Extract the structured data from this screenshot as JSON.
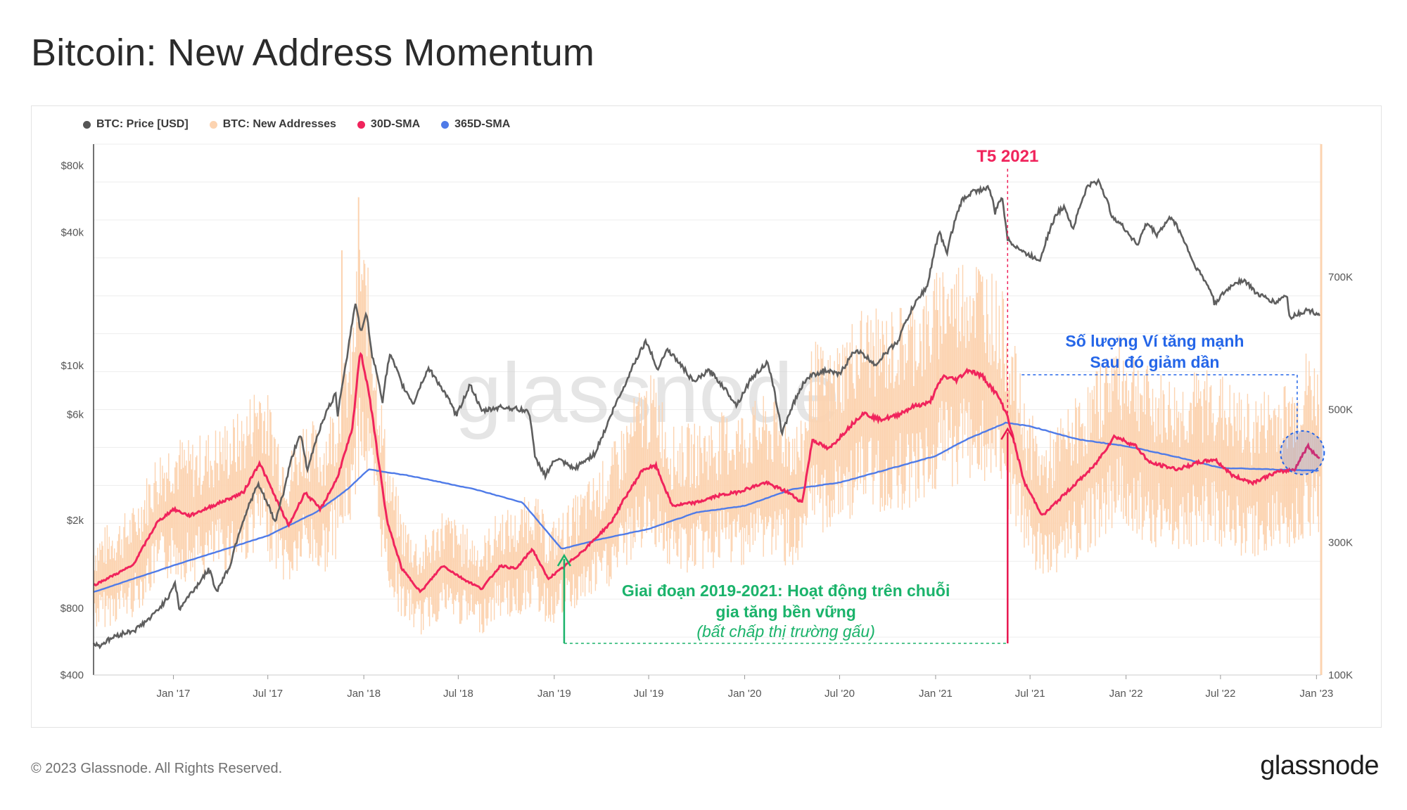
{
  "title": "Bitcoin: New Address Momentum",
  "footer": {
    "copyright": "© 2023 Glassnode. All Rights Reserved.",
    "logo": "glassnode"
  },
  "watermark": "glassnode",
  "legend": [
    {
      "label": "BTC: Price [USD]",
      "color": "#555555"
    },
    {
      "label": "BTC: New Addresses",
      "color": "#fcd3b0"
    },
    {
      "label": "30D-SMA",
      "color": "#f0245c"
    },
    {
      "label": "365D-SMA",
      "color": "#4f7be8"
    }
  ],
  "annotations": {
    "may2021": "T5 2021",
    "blue_line1": "Số lượng Ví tăng mạnh",
    "blue_line2": "Sau đó giảm dần",
    "green_line1": "Giai đoạn 2019-2021: Hoạt động trên chuỗi",
    "green_line2": "gia tăng bền vững",
    "green_line3": "(bất chấp thị trường gấu)"
  },
  "chart_data": {
    "type": "line",
    "x_tick_labels": [
      "Jan '17",
      "Jul '17",
      "Jan '18",
      "Jul '18",
      "Jan '19",
      "Jul '19",
      "Jan '20",
      "Jul '20",
      "Jan '21",
      "Jul '21",
      "Jan '22",
      "Jul '22",
      "Jan '23"
    ],
    "y_left_scale": "log",
    "y_left_tick_labels": [
      "$400",
      "$800",
      "$2k",
      "$6k",
      "$10k",
      "$40k",
      "$80k"
    ],
    "y_left_ticks": [
      400,
      800,
      2000,
      6000,
      10000,
      40000,
      80000
    ],
    "y_left_range": [
      400,
      100000
    ],
    "y_right_tick_labels": [
      "100K",
      "300K",
      "500K",
      "700K"
    ],
    "y_right_ticks": [
      100000,
      300000,
      500000,
      700000
    ],
    "y_right_range": [
      100000,
      900000
    ],
    "x_range": [
      "2016-08-01",
      "2023-01-10"
    ],
    "series": [
      {
        "name": "BTC: Price [USD]",
        "axis": "left",
        "points": [
          [
            "2016-08-01",
            560
          ],
          [
            "2016-08-10",
            540
          ],
          [
            "2016-09-15",
            605
          ],
          [
            "2016-10-20",
            640
          ],
          [
            "2016-11-20",
            730
          ],
          [
            "2016-12-20",
            880
          ],
          [
            "2017-01-04",
            1050
          ],
          [
            "2017-01-12",
            790
          ],
          [
            "2017-02-15",
            1010
          ],
          [
            "2017-03-10",
            1200
          ],
          [
            "2017-03-25",
            950
          ],
          [
            "2017-04-20",
            1250
          ],
          [
            "2017-05-25",
            2300
          ],
          [
            "2017-06-12",
            2900
          ],
          [
            "2017-07-15",
            1950
          ],
          [
            "2017-08-01",
            2700
          ],
          [
            "2017-08-20",
            4100
          ],
          [
            "2017-09-01",
            4900
          ],
          [
            "2017-09-15",
            3300
          ],
          [
            "2017-10-15",
            5700
          ],
          [
            "2017-11-08",
            7400
          ],
          [
            "2017-11-12",
            6000
          ],
          [
            "2017-11-29",
            10500
          ],
          [
            "2017-12-17",
            19200
          ],
          [
            "2017-12-25",
            14000
          ],
          [
            "2018-01-06",
            17000
          ],
          [
            "2018-01-17",
            11000
          ],
          [
            "2018-02-06",
            6900
          ],
          [
            "2018-02-20",
            11200
          ],
          [
            "2018-03-15",
            8200
          ],
          [
            "2018-04-06",
            6700
          ],
          [
            "2018-05-05",
            9700
          ],
          [
            "2018-06-28",
            5900
          ],
          [
            "2018-07-24",
            8200
          ],
          [
            "2018-08-14",
            6200
          ],
          [
            "2018-09-20",
            6500
          ],
          [
            "2018-10-15",
            6400
          ],
          [
            "2018-11-14",
            6200
          ],
          [
            "2018-11-25",
            3800
          ],
          [
            "2018-12-15",
            3200
          ],
          [
            "2019-01-05",
            3800
          ],
          [
            "2019-02-08",
            3400
          ],
          [
            "2019-03-20",
            4000
          ],
          [
            "2019-04-10",
            5200
          ],
          [
            "2019-05-14",
            7900
          ],
          [
            "2019-06-26",
            12900
          ],
          [
            "2019-07-17",
            9600
          ],
          [
            "2019-08-06",
            11800
          ],
          [
            "2019-09-25",
            8400
          ],
          [
            "2019-10-25",
            9500
          ],
          [
            "2019-12-17",
            6600
          ],
          [
            "2020-01-15",
            8800
          ],
          [
            "2020-02-13",
            10300
          ],
          [
            "2020-03-12",
            4900
          ],
          [
            "2020-04-29",
            8800
          ],
          [
            "2020-06-01",
            9500
          ],
          [
            "2020-07-01",
            9100
          ],
          [
            "2020-08-01",
            11800
          ],
          [
            "2020-09-08",
            10100
          ],
          [
            "2020-10-21",
            12900
          ],
          [
            "2020-11-20",
            18600
          ],
          [
            "2020-12-17",
            23000
          ],
          [
            "2021-01-08",
            40000
          ],
          [
            "2021-01-22",
            32000
          ],
          [
            "2021-02-21",
            56000
          ],
          [
            "2021-03-13",
            61000
          ],
          [
            "2021-04-14",
            63500
          ],
          [
            "2021-04-25",
            49000
          ],
          [
            "2021-05-08",
            58000
          ],
          [
            "2021-05-19",
            37000
          ],
          [
            "2021-06-22",
            32000
          ],
          [
            "2021-07-20",
            30000
          ],
          [
            "2021-08-22",
            49000
          ],
          [
            "2021-09-06",
            52000
          ],
          [
            "2021-09-21",
            41000
          ],
          [
            "2021-10-20",
            65000
          ],
          [
            "2021-11-10",
            68000
          ],
          [
            "2021-12-04",
            48000
          ],
          [
            "2022-01-23",
            35000
          ],
          [
            "2022-02-10",
            44000
          ],
          [
            "2022-03-01",
            39000
          ],
          [
            "2022-03-29",
            47000
          ],
          [
            "2022-05-10",
            29000
          ],
          [
            "2022-06-15",
            21000
          ],
          [
            "2022-06-19",
            19000
          ],
          [
            "2022-07-30",
            23800
          ],
          [
            "2022-08-15",
            24300
          ],
          [
            "2022-09-10",
            21000
          ],
          [
            "2022-10-15",
            19200
          ],
          [
            "2022-11-05",
            21000
          ],
          [
            "2022-11-10",
            16500
          ],
          [
            "2022-12-15",
            17800
          ],
          [
            "2023-01-08",
            17000
          ]
        ]
      },
      {
        "name": "30D-SMA",
        "axis": "right",
        "points": [
          [
            "2016-08-01",
            235000
          ],
          [
            "2016-10-15",
            265000
          ],
          [
            "2016-12-01",
            330000
          ],
          [
            "2017-01-01",
            350000
          ],
          [
            "2017-02-01",
            340000
          ],
          [
            "2017-04-01",
            360000
          ],
          [
            "2017-05-15",
            375000
          ],
          [
            "2017-06-15",
            420000
          ],
          [
            "2017-07-20",
            360000
          ],
          [
            "2017-08-10",
            325000
          ],
          [
            "2017-09-10",
            375000
          ],
          [
            "2017-10-10",
            350000
          ],
          [
            "2017-11-10",
            395000
          ],
          [
            "2017-12-10",
            470000
          ],
          [
            "2017-12-25",
            590000
          ],
          [
            "2018-01-10",
            530000
          ],
          [
            "2018-02-15",
            330000
          ],
          [
            "2018-03-15",
            260000
          ],
          [
            "2018-04-20",
            225000
          ],
          [
            "2018-06-01",
            265000
          ],
          [
            "2018-07-10",
            245000
          ],
          [
            "2018-08-15",
            230000
          ],
          [
            "2018-09-20",
            265000
          ],
          [
            "2018-10-20",
            260000
          ],
          [
            "2018-11-20",
            290000
          ],
          [
            "2018-12-20",
            245000
          ],
          [
            "2019-01-15",
            260000
          ],
          [
            "2019-03-01",
            290000
          ],
          [
            "2019-04-20",
            330000
          ],
          [
            "2019-05-15",
            365000
          ],
          [
            "2019-06-20",
            410000
          ],
          [
            "2019-07-15",
            415000
          ],
          [
            "2019-08-15",
            355000
          ],
          [
            "2019-10-01",
            360000
          ],
          [
            "2019-11-10",
            370000
          ],
          [
            "2019-12-15",
            375000
          ],
          [
            "2020-02-10",
            390000
          ],
          [
            "2020-03-25",
            375000
          ],
          [
            "2020-04-20",
            360000
          ],
          [
            "2020-05-10",
            455000
          ],
          [
            "2020-06-10",
            440000
          ],
          [
            "2020-07-15",
            470000
          ],
          [
            "2020-08-15",
            495000
          ],
          [
            "2020-09-15",
            485000
          ],
          [
            "2020-10-15",
            490000
          ],
          [
            "2020-11-20",
            505000
          ],
          [
            "2020-12-20",
            510000
          ],
          [
            "2021-01-15",
            550000
          ],
          [
            "2021-02-10",
            545000
          ],
          [
            "2021-03-05",
            560000
          ],
          [
            "2021-04-01",
            550000
          ],
          [
            "2021-05-01",
            520000
          ],
          [
            "2021-05-19",
            490000
          ],
          [
            "2021-06-20",
            390000
          ],
          [
            "2021-07-25",
            340000
          ],
          [
            "2021-09-15",
            380000
          ],
          [
            "2021-11-01",
            415000
          ],
          [
            "2021-12-10",
            460000
          ],
          [
            "2022-01-20",
            445000
          ],
          [
            "2022-02-15",
            420000
          ],
          [
            "2022-04-10",
            410000
          ],
          [
            "2022-05-20",
            420000
          ],
          [
            "2022-06-20",
            425000
          ],
          [
            "2022-07-25",
            400000
          ],
          [
            "2022-09-01",
            390000
          ],
          [
            "2022-10-15",
            405000
          ],
          [
            "2022-11-20",
            410000
          ],
          [
            "2022-12-15",
            445000
          ],
          [
            "2023-01-08",
            425000
          ]
        ]
      },
      {
        "name": "365D-SMA",
        "axis": "right",
        "points": [
          [
            "2016-08-01",
            225000
          ],
          [
            "2017-01-01",
            265000
          ],
          [
            "2017-07-01",
            310000
          ],
          [
            "2017-10-01",
            345000
          ],
          [
            "2017-12-01",
            380000
          ],
          [
            "2018-01-10",
            410000
          ],
          [
            "2018-04-01",
            400000
          ],
          [
            "2018-08-01",
            380000
          ],
          [
            "2018-11-01",
            360000
          ],
          [
            "2019-01-15",
            290000
          ],
          [
            "2019-04-01",
            305000
          ],
          [
            "2019-07-01",
            320000
          ],
          [
            "2019-10-01",
            345000
          ],
          [
            "2020-01-01",
            355000
          ],
          [
            "2020-04-01",
            380000
          ],
          [
            "2020-07-01",
            390000
          ],
          [
            "2020-10-01",
            410000
          ],
          [
            "2021-01-01",
            430000
          ],
          [
            "2021-03-01",
            455000
          ],
          [
            "2021-05-15",
            480000
          ],
          [
            "2021-07-01",
            475000
          ],
          [
            "2021-10-01",
            455000
          ],
          [
            "2022-01-01",
            445000
          ],
          [
            "2022-04-01",
            430000
          ],
          [
            "2022-07-01",
            412000
          ],
          [
            "2022-10-01",
            410000
          ],
          [
            "2023-01-08",
            408000
          ]
        ]
      },
      {
        "name": "BTC: New Addresses",
        "axis": "right",
        "style": "daily band around 30D-SMA, range roughly ±25%"
      }
    ]
  }
}
